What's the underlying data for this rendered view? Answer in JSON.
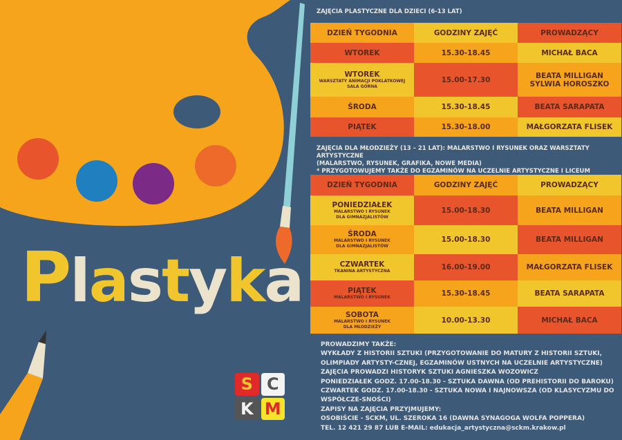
{
  "title": {
    "letters": [
      "P",
      "l",
      "a",
      "s",
      "t",
      "y",
      "k",
      "a"
    ]
  },
  "logo": {
    "letters": [
      "S",
      "C",
      "K",
      "M"
    ]
  },
  "colors": {
    "background": "#3d5a78",
    "orange": "#f5a41c",
    "red": "#e8542b",
    "yellow": "#f1c52c",
    "cream": "#ece3cc"
  },
  "kids": {
    "heading": "ZAJĘCIA PLASTYCZNE DLA DZIECI (6-13 LAT)",
    "columns": [
      "DZIEŃ TYGODNIA",
      "GODZINY ZAJĘĆ",
      "PROWADZĄCY"
    ],
    "rows": [
      {
        "day": "WTOREK",
        "note": "",
        "hours": "15.30-18.45",
        "teacher": "MICHAŁ BACA",
        "teacher2": ""
      },
      {
        "day": "WTOREK",
        "note": "WARSZTATY ANIMACJI POKLATKOWEJ",
        "note2": "SALA GÓRNA",
        "hours": "15.00-17.30",
        "teacher": "BEATA MILLIGAN",
        "teacher2": "SYLWIA HOROSZKO"
      },
      {
        "day": "ŚRODA",
        "note": "",
        "hours": "15.30-18.45",
        "teacher": "BEATA SARAPATA",
        "teacher2": ""
      },
      {
        "day": "PIĄTEK",
        "note": "",
        "hours": "15.30-18.00",
        "teacher": "MAŁGORZATA FLISEK",
        "teacher2": ""
      }
    ]
  },
  "youth": {
    "heading_lines": [
      "ZAJĘCIA DLA MŁODZIEŻY (13 – 21 LAT): MALARSTWO I RYSUNEK ORAZ WARSZTATY ARTYSTYCZNE",
      "(MALARSTWO, RYSUNEK, GRAFIKA, NOWE MEDIA)",
      "* PRZYGOTOWUJEMY TAKŻE DO EGZAMINÓW NA UCZELNIE ARTYSTYCZNE I LICEUM PLASTYCZNEGO"
    ],
    "columns": [
      "DZIEŃ TYGODNIA",
      "GODZINY ZAJĘĆ",
      "PROWADZĄCY"
    ],
    "rows": [
      {
        "day": "PONIEDZIAŁEK",
        "note": "MALARSTWO I RYSUNEK",
        "note2": "DLA GIMNAZJALISTÓW",
        "hours": "15.00-18.30",
        "teacher": "BEATA MILLIGAN"
      },
      {
        "day": "ŚRODA",
        "note": "MALARSTWO I RYSUNEK",
        "note2": "DLA GIMNAZJALISTÓW",
        "hours": "15.00-18.30",
        "teacher": "BEATA MILLIGAN"
      },
      {
        "day": "CZWARTEK",
        "note": "TKANINA ARTYSTYCZNA",
        "note2": "",
        "hours": "16.00-19.00",
        "teacher": "MAŁGORZATA FLISEK"
      },
      {
        "day": "PIĄTEK",
        "note": "MALARSTWO I RYSUNEK",
        "note2": "",
        "hours": "15.30-18.45",
        "teacher": "BEATA SARAPATA"
      },
      {
        "day": "SOBOTA",
        "note": "MALARSTWO I RYSUNEK",
        "note2": "DLA MŁODZIEŻY",
        "hours": "10.00-13.30",
        "teacher": "MICHAŁ BACA"
      }
    ]
  },
  "info": {
    "lines": [
      "PROWADZIMY TAKŻE:",
      "WYKŁADY Z HISTORII SZTUKI (PRZYGOTOWANIE DO MATURY Z HISTORII SZTUKI,",
      "OLIMPIADY ARTYSTY-CZNEJ, EGZAMINÓW USTNYCH NA UCZELNIE ARTYSTYCZNE)",
      "ZAJĘCIA PROWADZI HISTORYK SZTUKI AGNIESZKA WOZOWICZ",
      "PONIEDZIAŁEK GODZ. 17.00-18.30 - SZTUKA DAWNA (OD PREHISTORII DO BAROKU)",
      "CZWARTEK GODZ. 17.00-18.30 - SZTUKA NOWA I NAJNOWSZA (OD KLASYCYZMU DO",
      "WSPÓŁCZE-SNOŚCI)",
      "ZAPISY NA ZAJĘCIA PRZYJMUJEMY:",
      "OSOBIŚCIE - SCKM, UL. SZEROKA 16 (DAWNA SYNAGOGA WOLFA POPPERA)",
      "TEL. 12 421 29 87 LUB E-MAIL: edukacja_artystyczna@sckm.krakow.pl"
    ]
  }
}
